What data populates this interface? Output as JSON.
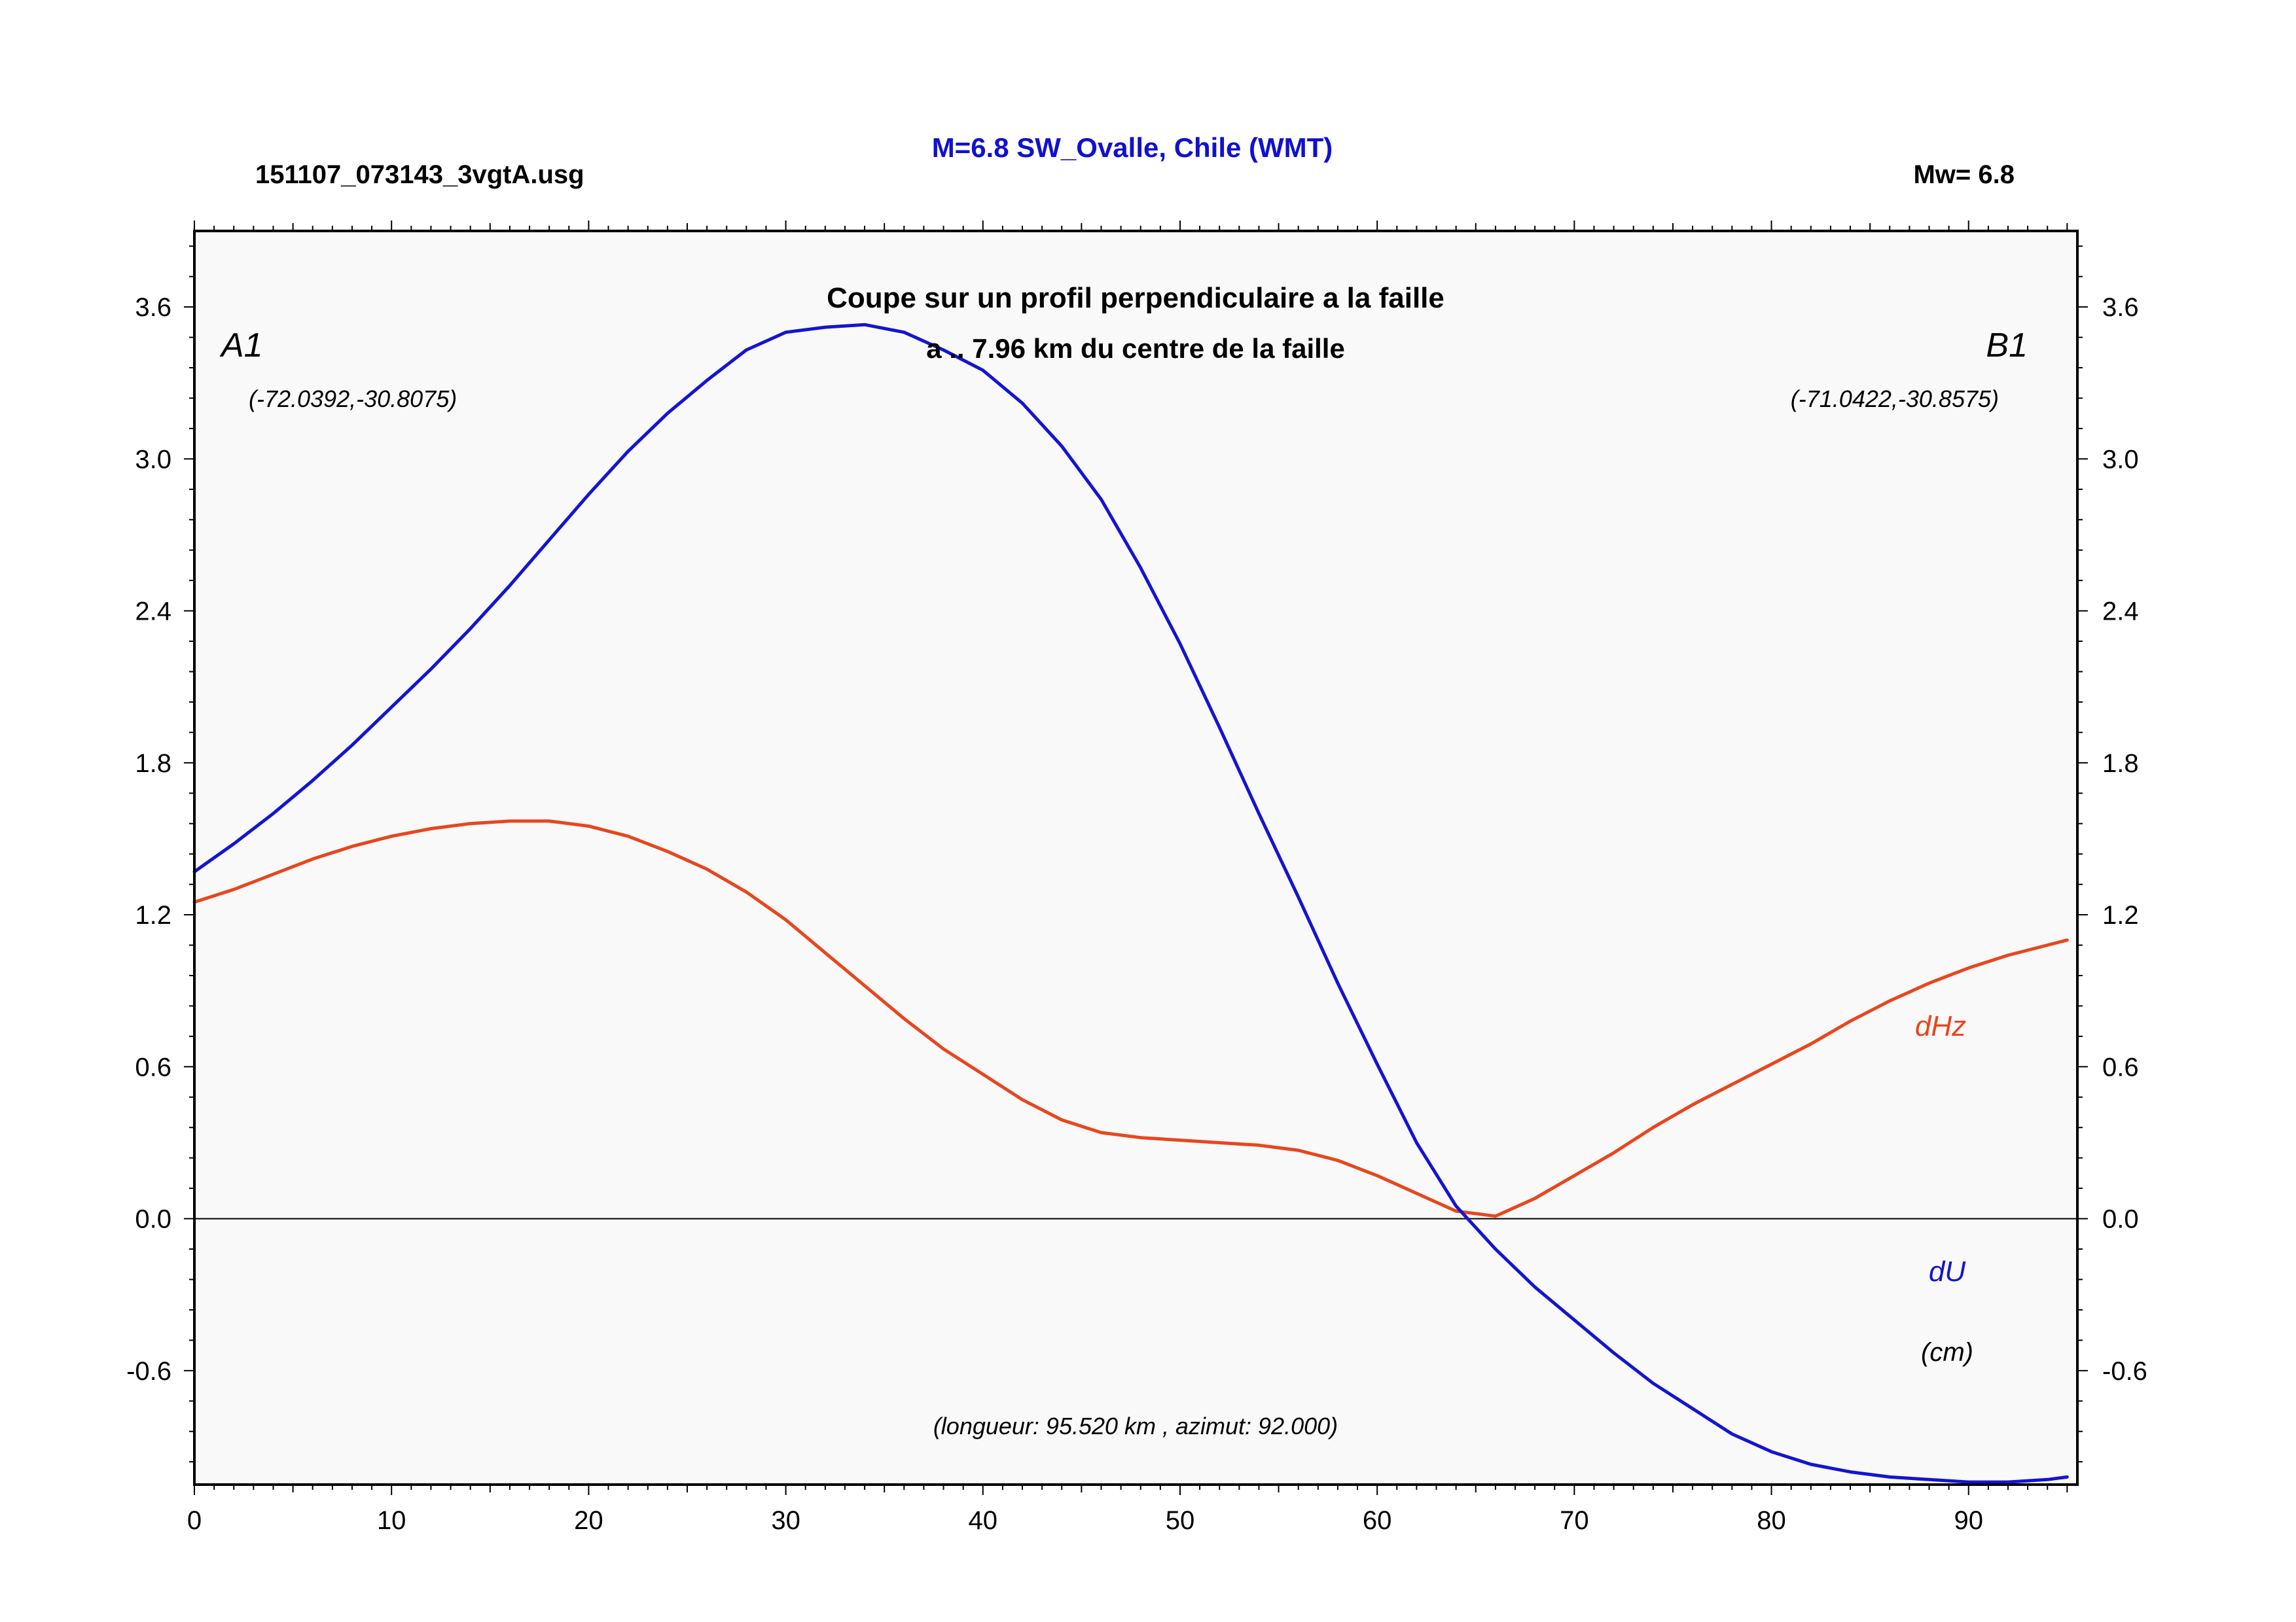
{
  "header": {
    "file_name": "151107_073143_3vgtA.usg",
    "title": "M=6.8 SW_Ovalle, Chile (WMT)",
    "magnitude": "Mw= 6.8"
  },
  "colors": {
    "title": "#1010d0",
    "du": "#1414d2",
    "dhz": "#e8461e",
    "plot_bg": "#f9f9f9",
    "frame": "#000000"
  },
  "chart_data": {
    "type": "line",
    "title": "Coupe sur un profil perpendiculaire a la faille",
    "subtitle": "a .. 7.96 km du centre de la faille",
    "start_label": "A1",
    "start_coords": "(-72.0392,-30.8075)",
    "end_label": "B1",
    "end_coords": "(-71.0422,-30.8575)",
    "unit_label": "(cm)",
    "footer_note": "(longueur: 95.520 km , azimut: 92.000)",
    "xlim": [
      0,
      95.52
    ],
    "ylim": [
      -1.05,
      3.9
    ],
    "x_ticks": [
      "0",
      "10",
      "20",
      "30",
      "40",
      "50",
      "60",
      "70",
      "80",
      "90"
    ],
    "y_ticks": [
      "3.6",
      "3.0",
      "2.4",
      "1.8",
      "1.2",
      "0.6",
      "0.0",
      "-0.6"
    ],
    "zero_line": true,
    "grid": false,
    "series": [
      {
        "name": "dU",
        "x": [
          0,
          2,
          4,
          6,
          8,
          10,
          12,
          14,
          16,
          18,
          20,
          22,
          24,
          26,
          28,
          30,
          32,
          34,
          36,
          38,
          40,
          42,
          44,
          46,
          48,
          50,
          52,
          54,
          56,
          58,
          60,
          62,
          64,
          66,
          68,
          70,
          72,
          74,
          76,
          78,
          80,
          82,
          84,
          86,
          88,
          90,
          92,
          94,
          95
        ],
        "y": [
          1.37,
          1.48,
          1.6,
          1.73,
          1.87,
          2.02,
          2.17,
          2.33,
          2.5,
          2.68,
          2.86,
          3.03,
          3.18,
          3.31,
          3.43,
          3.5,
          3.52,
          3.53,
          3.5,
          3.43,
          3.35,
          3.22,
          3.05,
          2.84,
          2.57,
          2.27,
          1.94,
          1.6,
          1.27,
          0.93,
          0.61,
          0.3,
          0.05,
          -0.12,
          -0.27,
          -0.4,
          -0.53,
          -0.65,
          -0.75,
          -0.85,
          -0.92,
          -0.97,
          -1.0,
          -1.02,
          -1.03,
          -1.04,
          -1.04,
          -1.03,
          -1.02
        ]
      },
      {
        "name": "dHz",
        "x": [
          0,
          2,
          4,
          6,
          8,
          10,
          12,
          14,
          16,
          18,
          20,
          22,
          24,
          26,
          28,
          30,
          32,
          34,
          36,
          38,
          40,
          42,
          44,
          46,
          48,
          50,
          52,
          54,
          56,
          58,
          60,
          62,
          64,
          66,
          68,
          70,
          72,
          74,
          76,
          78,
          80,
          82,
          84,
          86,
          88,
          90,
          92,
          94,
          95
        ],
        "y": [
          1.25,
          1.3,
          1.36,
          1.42,
          1.47,
          1.51,
          1.54,
          1.56,
          1.57,
          1.57,
          1.55,
          1.51,
          1.45,
          1.38,
          1.29,
          1.18,
          1.05,
          0.92,
          0.79,
          0.67,
          0.57,
          0.47,
          0.39,
          0.34,
          0.32,
          0.31,
          0.3,
          0.29,
          0.27,
          0.23,
          0.17,
          0.1,
          0.03,
          0.01,
          0.08,
          0.17,
          0.26,
          0.36,
          0.45,
          0.53,
          0.61,
          0.69,
          0.78,
          0.86,
          0.93,
          0.99,
          1.04,
          1.08,
          1.1
        ]
      }
    ]
  }
}
